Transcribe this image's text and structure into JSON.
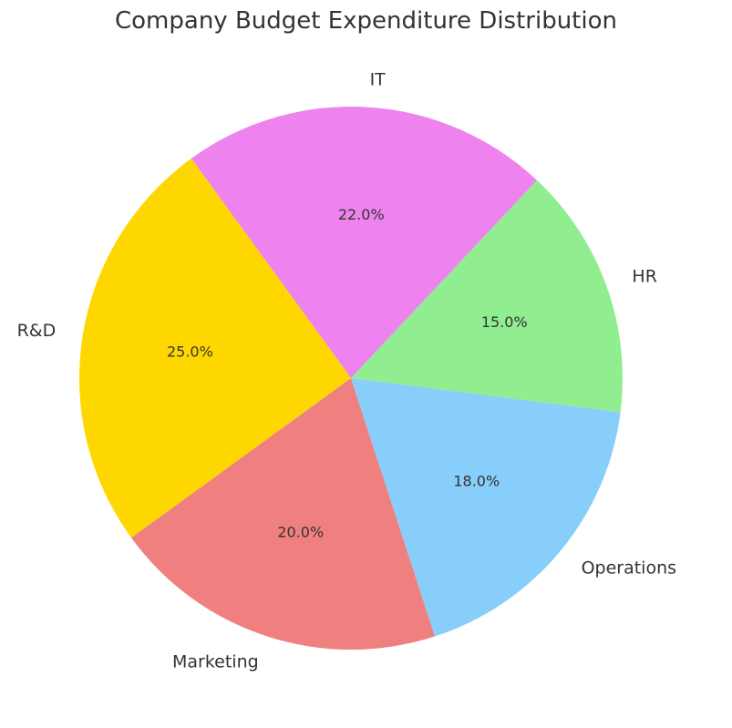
{
  "chart_data": {
    "type": "pie",
    "title": "Company Budget Expenditure Distribution",
    "categories": [
      "Marketing",
      "Operations",
      "HR",
      "IT",
      "R&D"
    ],
    "values": [
      20.0,
      18.0,
      15.0,
      22.0,
      25.0
    ],
    "percent_labels": [
      "20.0%",
      "18.0%",
      "15.0%",
      "22.0%",
      "25.0%"
    ],
    "colors": [
      "#f08080",
      "#87cefa",
      "#90ee90",
      "#ee82ee",
      "#ffd700"
    ],
    "start_angle_deg": 216,
    "direction": "counterclockwise"
  }
}
